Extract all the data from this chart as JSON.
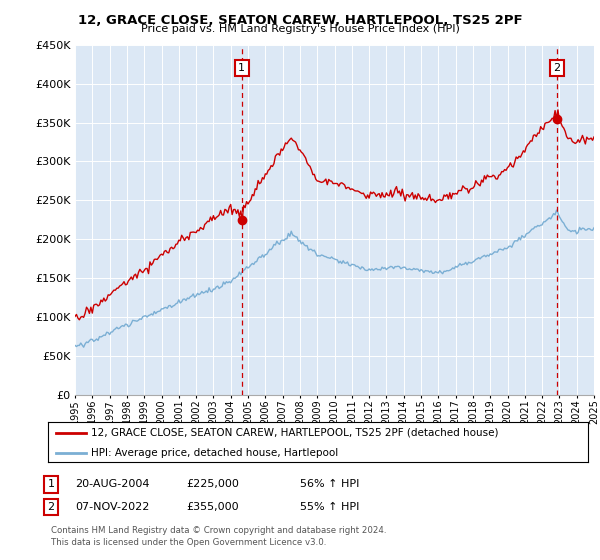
{
  "title": "12, GRACE CLOSE, SEATON CAREW, HARTLEPOOL, TS25 2PF",
  "subtitle": "Price paid vs. HM Land Registry's House Price Index (HPI)",
  "legend_line1": "12, GRACE CLOSE, SEATON CAREW, HARTLEPOOL, TS25 2PF (detached house)",
  "legend_line2": "HPI: Average price, detached house, Hartlepool",
  "annotation1_date": "20-AUG-2004",
  "annotation1_price": "£225,000",
  "annotation1_hpi": "56% ↑ HPI",
  "annotation1_year": 2004.64,
  "annotation1_value": 225000,
  "annotation2_date": "07-NOV-2022",
  "annotation2_price": "£355,000",
  "annotation2_hpi": "55% ↑ HPI",
  "annotation2_year": 2022.85,
  "annotation2_value": 355000,
  "footer1": "Contains HM Land Registry data © Crown copyright and database right 2024.",
  "footer2": "This data is licensed under the Open Government Licence v3.0.",
  "hpi_color": "#7bafd4",
  "price_color": "#cc0000",
  "dashed_color": "#cc0000",
  "ylim": [
    0,
    450000
  ],
  "yticks": [
    0,
    50000,
    100000,
    150000,
    200000,
    250000,
    300000,
    350000,
    400000,
    450000
  ],
  "plot_bg": "#dce8f5"
}
